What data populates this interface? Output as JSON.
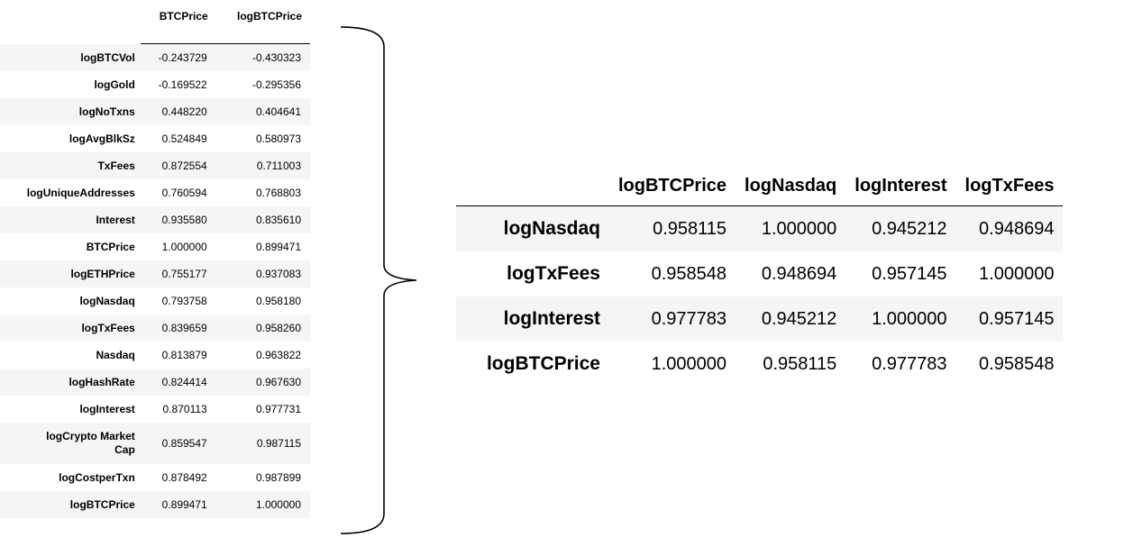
{
  "left_table": {
    "columns": [
      "BTCPrice",
      "logBTCPrice"
    ],
    "rows": [
      {
        "label": "logBTCVol",
        "values": [
          "-0.243729",
          "-0.430323"
        ]
      },
      {
        "label": "logGold",
        "values": [
          "-0.169522",
          "-0.295356"
        ]
      },
      {
        "label": "logNoTxns",
        "values": [
          "0.448220",
          "0.404641"
        ]
      },
      {
        "label": "logAvgBlkSz",
        "values": [
          "0.524849",
          "0.580973"
        ]
      },
      {
        "label": "TxFees",
        "values": [
          "0.872554",
          "0.711003"
        ]
      },
      {
        "label": "logUniqueAddresses",
        "values": [
          "0.760594",
          "0.768803"
        ]
      },
      {
        "label": "Interest",
        "values": [
          "0.935580",
          "0.835610"
        ]
      },
      {
        "label": "BTCPrice",
        "values": [
          "1.000000",
          "0.899471"
        ]
      },
      {
        "label": "logETHPrice",
        "values": [
          "0.755177",
          "0.937083"
        ]
      },
      {
        "label": "logNasdaq",
        "values": [
          "0.793758",
          "0.958180"
        ]
      },
      {
        "label": "logTxFees",
        "values": [
          "0.839659",
          "0.958260"
        ]
      },
      {
        "label": "Nasdaq",
        "values": [
          "0.813879",
          "0.963822"
        ]
      },
      {
        "label": "logHashRate",
        "values": [
          "0.824414",
          "0.967630"
        ]
      },
      {
        "label": "logInterest",
        "values": [
          "0.870113",
          "0.977731"
        ]
      },
      {
        "label": "logCrypto Market Cap",
        "values": [
          "0.859547",
          "0.987115"
        ]
      },
      {
        "label": "logCostperTxn",
        "values": [
          "0.878492",
          "0.987899"
        ]
      },
      {
        "label": "logBTCPrice",
        "values": [
          "0.899471",
          "1.000000"
        ]
      }
    ]
  },
  "right_table": {
    "columns": [
      "logBTCPrice",
      "logNasdaq",
      "logInterest",
      "logTxFees"
    ],
    "rows": [
      {
        "label": "logNasdaq",
        "values": [
          "0.958115",
          "1.000000",
          "0.945212",
          "0.948694"
        ]
      },
      {
        "label": "logTxFees",
        "values": [
          "0.958548",
          "0.948694",
          "0.957145",
          "1.000000"
        ]
      },
      {
        "label": "logInterest",
        "values": [
          "0.977783",
          "0.945212",
          "1.000000",
          "0.957145"
        ]
      },
      {
        "label": "logBTCPrice",
        "values": [
          "1.000000",
          "0.958115",
          "0.977783",
          "0.958548"
        ]
      }
    ]
  }
}
